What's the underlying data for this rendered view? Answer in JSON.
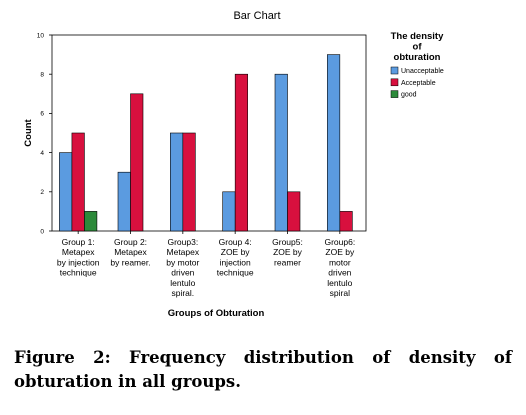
{
  "chart_data": {
    "type": "bar",
    "title": "Bar Chart",
    "xlabel": "Groups of Obturation",
    "ylabel": "Count",
    "ylim": [
      0,
      10
    ],
    "yticks": [
      0,
      2,
      4,
      6,
      8,
      10
    ],
    "grid": false,
    "legend_title": [
      "The density",
      "of",
      "obturation"
    ],
    "legend_position": "right",
    "categories": [
      [
        "Group 1:",
        "Metapex",
        "by injection",
        "technique"
      ],
      [
        "Group 2:",
        "Metapex",
        "by reamer."
      ],
      [
        "Group3:",
        "Metapex",
        "by motor",
        "driven",
        "lentulo",
        "spiral."
      ],
      [
        "Group 4:",
        "ZOE by",
        "injection",
        "technique"
      ],
      [
        "Group5:",
        "ZOE by",
        "reamer"
      ],
      [
        "Group6:",
        "ZOE by",
        "motor",
        "driven",
        "lentulo",
        "spiral"
      ]
    ],
    "series": [
      {
        "name": "Unacceptable",
        "color": "#5b9be0",
        "values": [
          4,
          3,
          5,
          2,
          8,
          9
        ]
      },
      {
        "name": "Acceptable",
        "color": "#d8103e",
        "values": [
          5,
          7,
          5,
          8,
          2,
          1
        ]
      },
      {
        "name": "good",
        "color": "#2c8a3a",
        "values": [
          1,
          0,
          0,
          0,
          0,
          0
        ]
      }
    ]
  },
  "caption": "Figure 2: Frequency distribution of density of obturation in all groups."
}
